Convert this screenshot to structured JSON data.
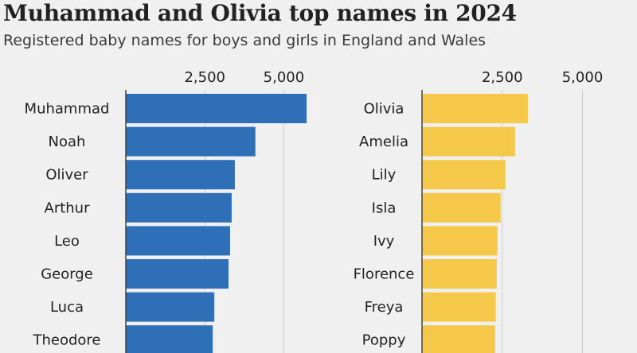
{
  "header": {
    "title": "Muhammad and Olivia top names in 2024",
    "subtitle": "Registered baby names for boys and girls in England and Wales"
  },
  "colors": {
    "boys": "#2f6fb7",
    "girls": "#f6c84a",
    "grid": "#cccccc",
    "axis": "#444444"
  },
  "chart_data": [
    {
      "type": "bar",
      "orientation": "horizontal",
      "categories": [
        "Muhammad",
        "Noah",
        "Oliver",
        "Arthur",
        "Leo",
        "George",
        "Luca",
        "Theodore"
      ],
      "values": [
        5720,
        4100,
        3450,
        3350,
        3300,
        3250,
        2800,
        2750
      ],
      "xlim": [
        0,
        5500
      ],
      "xticks": [
        2500,
        5000
      ],
      "xtick_labels": [
        "2,500",
        "5,000"
      ],
      "grid": true,
      "color": "#2f6fb7"
    },
    {
      "type": "bar",
      "orientation": "horizontal",
      "categories": [
        "Olivia",
        "Amelia",
        "Lily",
        "Isla",
        "Ivy",
        "Florence",
        "Freya",
        "Poppy"
      ],
      "values": [
        3300,
        2900,
        2600,
        2450,
        2350,
        2330,
        2300,
        2280
      ],
      "xlim": [
        0,
        5500
      ],
      "xticks": [
        2500,
        5000
      ],
      "xtick_labels": [
        "2,500",
        "5,000"
      ],
      "grid": true,
      "color": "#f6c84a"
    }
  ]
}
